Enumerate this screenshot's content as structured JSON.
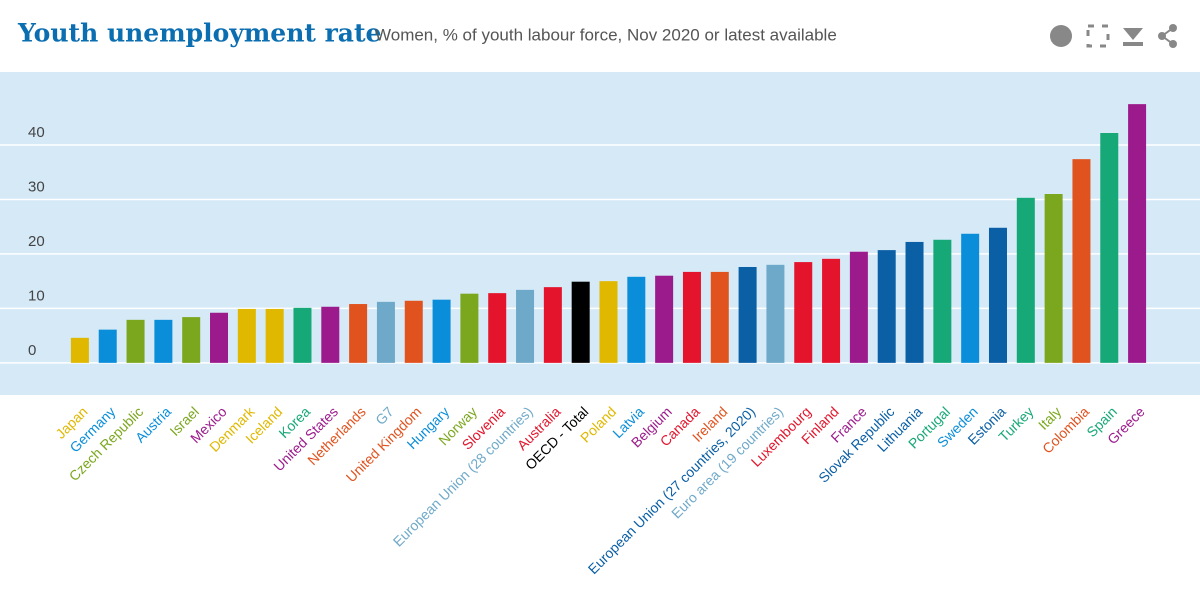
{
  "chart_data": {
    "type": "bar",
    "title": "Youth unemployment rate",
    "subtitle": "Women, % of youth labour force, Nov 2020 or latest available",
    "categories": [
      "Japan",
      "Germany",
      "Czech Republic",
      "Austria",
      "Israel",
      "Mexico",
      "Denmark",
      "Iceland",
      "Korea",
      "United States",
      "Netherlands",
      "G7",
      "United Kingdom",
      "Hungary",
      "Norway",
      "Slovenia",
      "European Union (28 countries)",
      "Australia",
      "OECD - Total",
      "Poland",
      "Latvia",
      "Belgium",
      "Canada",
      "Ireland",
      "European Union (27 countries, 2020)",
      "Euro area (19 countries)",
      "Luxembourg",
      "Finland",
      "France",
      "Slovak Republic",
      "Lithuania",
      "Portugal",
      "Sweden",
      "Estonia",
      "Turkey",
      "Italy",
      "Colombia",
      "Spain",
      "Greece"
    ],
    "values": [
      4.6,
      6.1,
      7.9,
      7.9,
      8.4,
      9.2,
      9.9,
      9.9,
      10.1,
      10.3,
      10.8,
      11.2,
      11.4,
      11.6,
      12.7,
      12.8,
      13.4,
      13.9,
      14.9,
      15.0,
      15.8,
      16.0,
      16.7,
      16.7,
      17.6,
      18.0,
      18.5,
      19.1,
      20.4,
      20.7,
      22.2,
      22.6,
      23.7,
      24.8,
      30.3,
      31.0,
      37.4,
      42.2,
      47.5
    ],
    "colors": [
      "#e0b800",
      "#0b8ed9",
      "#7ba71e",
      "#0b8ed9",
      "#7ba71e",
      "#9c1b8c",
      "#e0b800",
      "#e0b800",
      "#17a878",
      "#9c1b8c",
      "#e0531f",
      "#6fa9c9",
      "#e0531f",
      "#0b8ed9",
      "#7ba71e",
      "#e3142b",
      "#6fa9c9",
      "#e3142b",
      "#000000",
      "#e0b800",
      "#0b8ed9",
      "#9c1b8c",
      "#e3142b",
      "#e0531f",
      "#0b5fa5",
      "#6fa9c9",
      "#e3142b",
      "#e3142b",
      "#9c1b8c",
      "#0b5fa5",
      "#0b5fa5",
      "#17a878",
      "#0b8ed9",
      "#0b5fa5",
      "#17a878",
      "#7ba71e",
      "#e0531f",
      "#17a878",
      "#9c1b8c"
    ],
    "ylim": [
      -5.9,
      53.4
    ],
    "yticks": [
      0,
      10,
      20,
      30,
      40
    ],
    "grid": true
  }
}
